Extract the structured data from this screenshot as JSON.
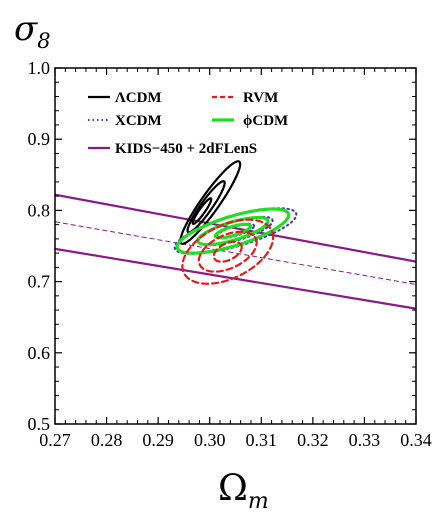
{
  "chart_data": {
    "type": "contour",
    "xlabel": "Ωm",
    "ylabel": "σ8",
    "xlim": [
      0.27,
      0.34
    ],
    "ylim": [
      0.5,
      1.0
    ],
    "xticks": [
      "0.27",
      "0.28",
      "0.29",
      "0.30",
      "0.31",
      "0.32",
      "0.33",
      "0.34"
    ],
    "yticks": [
      "0.5",
      "0.6",
      "0.7",
      "0.8",
      "0.9",
      "1.0"
    ],
    "grid": false,
    "legend_position": "top-left",
    "legend": [
      {
        "label": "ΛCDM",
        "color": "#000000",
        "dash": "solid",
        "width": 2.2
      },
      {
        "label": "RVM",
        "color": "#e8171c",
        "dash": "dashed",
        "width": 2.2
      },
      {
        "label": "XCDM",
        "color": "#3a36c8",
        "dash": "dotted",
        "width": 2.0
      },
      {
        "label": "ϕCDM",
        "color": "#22dd22",
        "dash": "solid",
        "width": 3.2
      },
      {
        "label": "KIDS−450 + 2dFLenS",
        "color": "#8a1a86",
        "dash": "solid",
        "width": 2.2
      }
    ],
    "series": [
      {
        "name": "ΛCDM",
        "color": "#000000",
        "dash": "solid",
        "width": 2.2,
        "center": [
          0.2985,
          0.799
        ],
        "sx": [
          0.0018,
          0.0036,
          0.0058
        ],
        "sy": [
          0.018,
          0.036,
          0.058
        ],
        "rho": 0.93,
        "offset": [
          0.0008,
          0.006
        ]
      },
      {
        "name": "XCDM",
        "color": "#3a36c8",
        "dash": "dotted",
        "width": 2.0,
        "center": [
          0.305,
          0.771
        ],
        "sx": [
          0.0036,
          0.0072,
          0.0118
        ],
        "sy": [
          0.01,
          0.02,
          0.032
        ],
        "rho": 0.72,
        "offset": [
          0,
          0
        ]
      },
      {
        "name": "ϕCDM",
        "color": "#22dd22",
        "dash": "solid",
        "width": 3.2,
        "center": [
          0.3045,
          0.771
        ],
        "sx": [
          0.0034,
          0.0068,
          0.0108
        ],
        "sy": [
          0.0095,
          0.019,
          0.031
        ],
        "rho": 0.72,
        "offset": [
          0,
          0
        ]
      },
      {
        "name": "RVM",
        "color": "#e8171c",
        "dash": "dashed",
        "width": 2.2,
        "center": [
          0.3035,
          0.742
        ],
        "sx": [
          0.0027,
          0.0056,
          0.0088
        ],
        "sy": [
          0.014,
          0.028,
          0.045
        ],
        "rho": 0.45,
        "offset": [
          0,
          0
        ]
      }
    ],
    "band": {
      "name": "KIDS−450 + 2dFLenS",
      "color": "#8a1a86",
      "upper": [
        [
          0.27,
          0.822
        ],
        [
          0.34,
          0.728
        ]
      ],
      "center": [
        [
          0.27,
          0.784
        ],
        [
          0.34,
          0.696
        ]
      ],
      "lower": [
        [
          0.27,
          0.746
        ],
        [
          0.34,
          0.662
        ]
      ]
    }
  }
}
